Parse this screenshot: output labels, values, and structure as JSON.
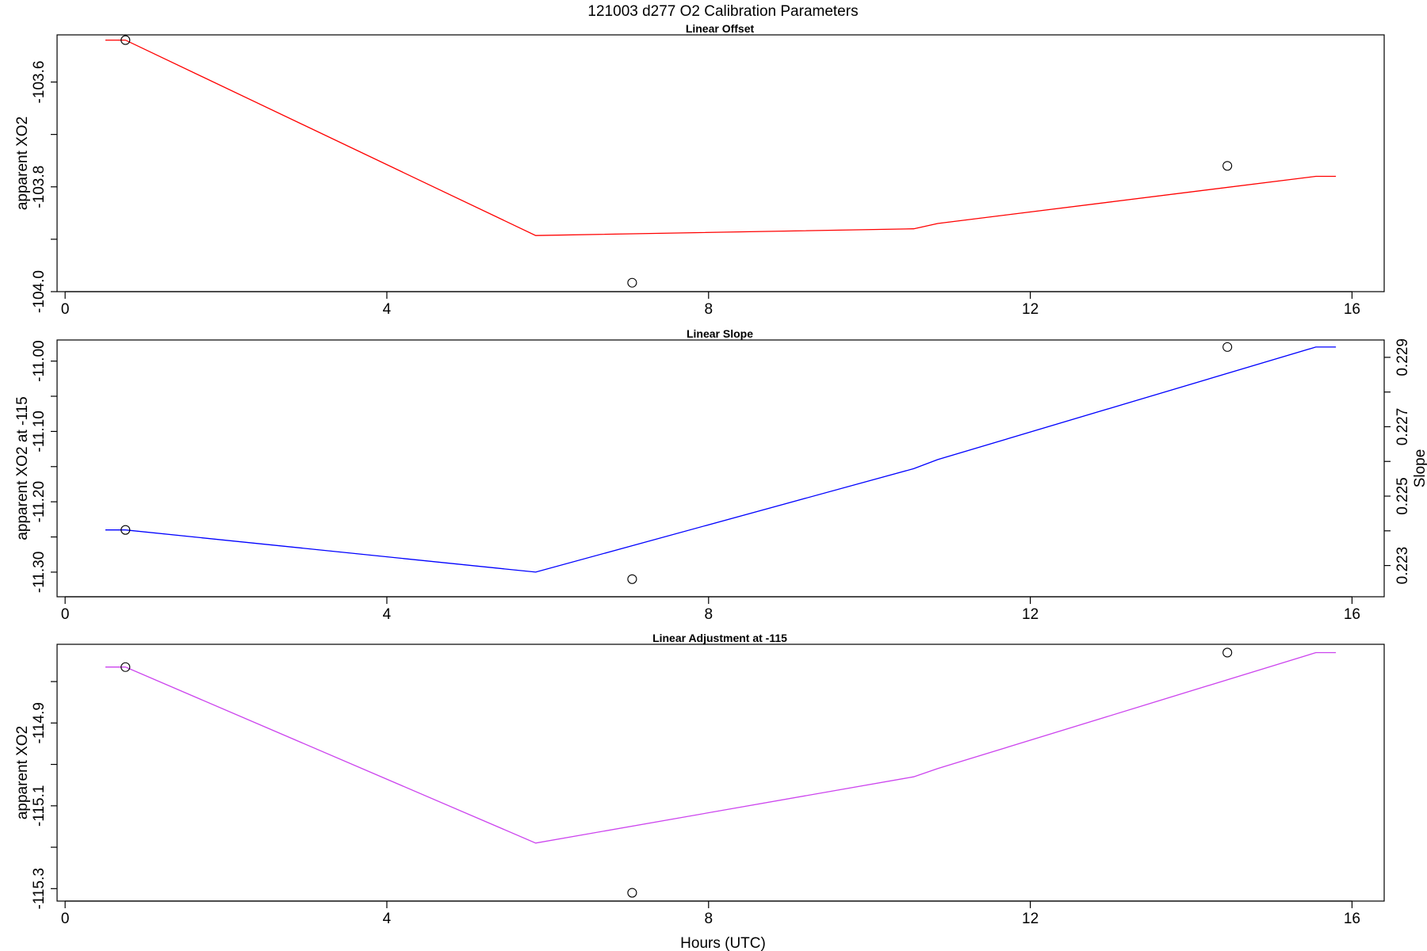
{
  "title": "121003   d277   O2 Calibration Parameters",
  "chart_data": {
    "type": "line",
    "xlabel": "Hours (UTC)",
    "x_ticks": [
      "0",
      "4",
      "8",
      "12",
      "16"
    ],
    "xlim": [
      -0.1,
      16.4
    ],
    "panels": [
      {
        "title": "Linear Offset",
        "ylabel": "apparent XO2",
        "ylim": [
          -104.0,
          -103.51
        ],
        "y_ticks": [
          -103.6,
          -103.8,
          -104.0
        ],
        "y_tick_labels": [
          "-103.6",
          "-103.8",
          "-104.0"
        ],
        "y_minor_ticks": [
          -103.7,
          -103.9
        ],
        "line_color": "#ff0000",
        "line": {
          "x": [
            0.5,
            0.75,
            5.85,
            10.55,
            10.85,
            15.55,
            15.8
          ],
          "y": [
            -103.52,
            -103.52,
            -103.893,
            -103.88,
            -103.87,
            -103.78,
            -103.78
          ]
        },
        "points": {
          "x": [
            0.75,
            7.05,
            14.45
          ],
          "y": [
            -103.52,
            -103.983,
            -103.76
          ]
        }
      },
      {
        "title": "Linear Slope",
        "ylabel": "apparent XO2 at -115",
        "ylim": [
          -11.335,
          -10.97
        ],
        "y_ticks": [
          -11.0,
          -11.1,
          -11.2,
          -11.3
        ],
        "y_tick_labels": [
          "-11.00",
          "-11.10",
          "-11.20",
          "-11.30"
        ],
        "y_minor_ticks": [
          -11.05,
          -11.15,
          -11.25
        ],
        "right_axis": {
          "label": "Slope",
          "range": [
            0.2221,
            0.2295
          ],
          "ticks": [
            0.223,
            0.225,
            0.227,
            0.229
          ],
          "tick_labels": [
            "0.223",
            "0.225",
            "0.227",
            "0.229"
          ],
          "minor_ticks": [
            0.224,
            0.226,
            0.228
          ]
        },
        "line_color": "#0000ff",
        "line": {
          "x": [
            0.5,
            0.75,
            5.85,
            10.55,
            10.85,
            15.55,
            15.8
          ],
          "y": [
            -11.24,
            -11.24,
            -11.3,
            -11.153,
            -11.14,
            -10.98,
            -10.98
          ]
        },
        "points": {
          "x": [
            0.75,
            7.05,
            14.45
          ],
          "y": [
            -11.24,
            -11.31,
            -10.98
          ]
        }
      },
      {
        "title": "Linear Adjustment at -115",
        "ylabel": "apparent XO2",
        "ylim": [
          -115.33,
          -114.71
        ],
        "y_ticks": [
          -114.9,
          -115.1,
          -115.3
        ],
        "y_tick_labels": [
          "-114.9",
          "-115.1",
          "-115.3"
        ],
        "y_minor_ticks": [
          -114.8,
          -115.0,
          -115.2
        ],
        "line_color": "#cc44ee",
        "line": {
          "x": [
            0.5,
            0.75,
            5.85,
            10.55,
            10.85,
            15.55,
            15.8
          ],
          "y": [
            -114.765,
            -114.765,
            -115.19,
            -115.03,
            -115.01,
            -114.73,
            -114.73
          ]
        },
        "points": {
          "x": [
            0.75,
            7.05,
            14.45
          ],
          "y": [
            -114.765,
            -115.31,
            -114.73
          ]
        }
      }
    ]
  }
}
